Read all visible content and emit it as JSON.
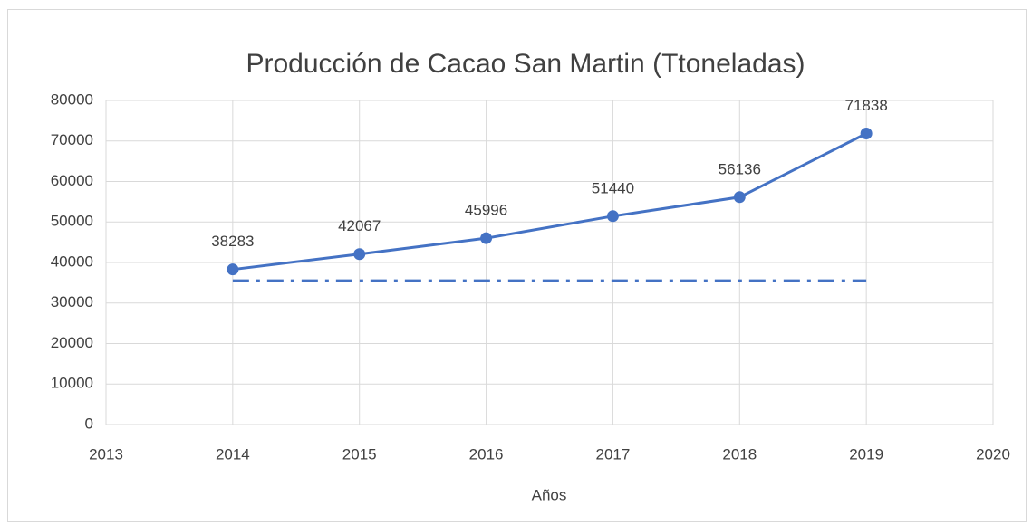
{
  "chart_data": {
    "type": "line",
    "title": "Producción  de Cacao San Martin (Ttoneladas)",
    "x_label": "Años",
    "x": [
      2014,
      2015,
      2016,
      2017,
      2018,
      2019
    ],
    "series": [
      {
        "color": "#4472c4",
        "values": [
          38283,
          42067,
          45996,
          51440,
          56136,
          71838
        ],
        "dash": "solid",
        "markers": true,
        "data_labels": true
      },
      {
        "color": "#4472c4",
        "values": [
          35500,
          35500,
          35500,
          35500,
          35500,
          35500
        ],
        "dash": "dash-dot",
        "markers": false,
        "data_labels": false
      }
    ],
    "xlim": [
      2013,
      2020
    ],
    "xticks": [
      2013,
      2014,
      2015,
      2016,
      2017,
      2018,
      2019,
      2020
    ],
    "ylim": [
      0,
      80000
    ],
    "yticks": [
      0,
      10000,
      20000,
      30000,
      40000,
      50000,
      60000,
      70000,
      80000
    ],
    "grid": true
  }
}
